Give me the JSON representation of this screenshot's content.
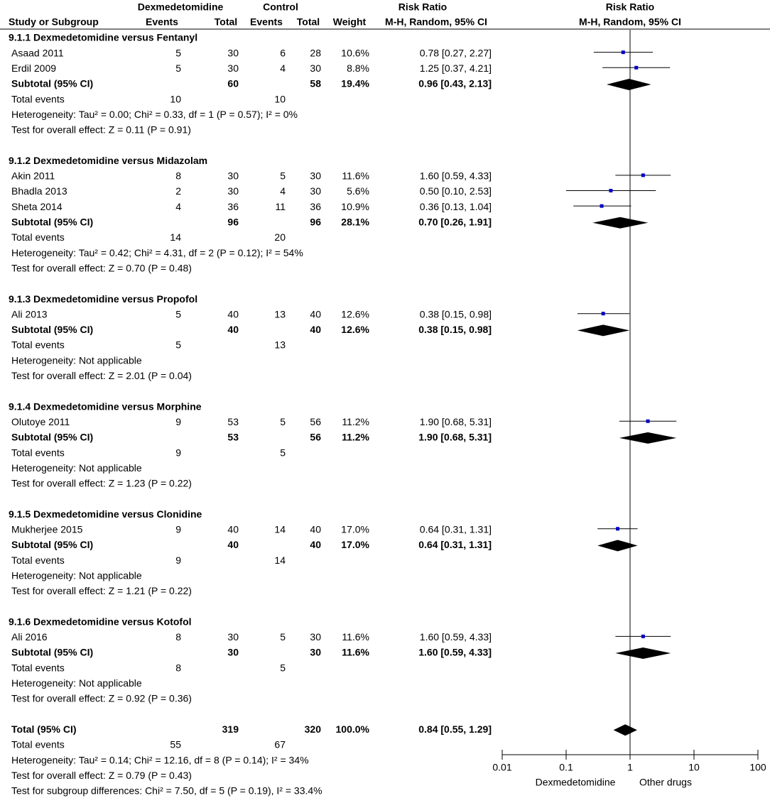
{
  "chart_data": {
    "type": "forest",
    "log": true,
    "xlim": [
      0.01,
      100
    ],
    "xticks": [
      {
        "value": 0.01,
        "label": "0.01"
      },
      {
        "value": 0.1,
        "label": "0.1"
      },
      1,
      10,
      100
    ],
    "xlabel_left": "Dexmedetomidine",
    "xlabel_right": "Other drugs",
    "square_color": "#0000c8",
    "header": {
      "exp_group": "Dexmedetomidine",
      "ctrl_group": "Control",
      "study": "Study or Subgroup",
      "events_exp": "Events",
      "total_exp": "Total",
      "events_ctrl": "Events",
      "total_ctrl": "Total",
      "weight": "Weight",
      "rr_title": "Risk Ratio",
      "rr_method": "M-H, Random, 95% CI",
      "plot_title": "Risk Ratio",
      "plot_method": "M-H, Random, 95% CI"
    },
    "groups": [
      {
        "title": "9.1.1 Dexmedetomidine versus Fentanyl",
        "studies": [
          {
            "name": "Asaad 2011",
            "events_exp": 5,
            "total_exp": 30,
            "events_ctrl": 6,
            "total_ctrl": 28,
            "weight": "10.6%",
            "rr": 0.78,
            "ci_low": 0.27,
            "ci_high": 2.27,
            "label": "0.78 [0.27, 2.27]"
          },
          {
            "name": "Erdil 2009",
            "events_exp": 5,
            "total_exp": 30,
            "events_ctrl": 4,
            "total_ctrl": 30,
            "weight": "8.8%",
            "rr": 1.25,
            "ci_low": 0.37,
            "ci_high": 4.21,
            "label": "1.25 [0.37, 4.21]"
          }
        ],
        "subtotal": {
          "name": "Subtotal (95% CI)",
          "total_exp": 60,
          "total_ctrl": 58,
          "weight": "19.4%",
          "rr": 0.96,
          "ci_low": 0.43,
          "ci_high": 2.13,
          "label": "0.96 [0.43, 2.13]"
        },
        "total_events": {
          "label": "Total events",
          "exp": 10,
          "ctrl": 10
        },
        "heterogeneity": "Heterogeneity: Tau² = 0.00; Chi² = 0.33, df = 1 (P = 0.57); I² = 0%",
        "overall_effect": "Test for overall effect: Z = 0.11 (P = 0.91)"
      },
      {
        "title": "9.1.2 Dexmedetomidine versus Midazolam",
        "studies": [
          {
            "name": "Akin 2011",
            "events_exp": 8,
            "total_exp": 30,
            "events_ctrl": 5,
            "total_ctrl": 30,
            "weight": "11.6%",
            "rr": 1.6,
            "ci_low": 0.59,
            "ci_high": 4.33,
            "label": "1.60 [0.59, 4.33]"
          },
          {
            "name": "Bhadla 2013",
            "events_exp": 2,
            "total_exp": 30,
            "events_ctrl": 4,
            "total_ctrl": 30,
            "weight": "5.6%",
            "rr": 0.5,
            "ci_low": 0.1,
            "ci_high": 2.53,
            "label": "0.50 [0.10, 2.53]"
          },
          {
            "name": "Sheta 2014",
            "events_exp": 4,
            "total_exp": 36,
            "events_ctrl": 11,
            "total_ctrl": 36,
            "weight": "10.9%",
            "rr": 0.36,
            "ci_low": 0.13,
            "ci_high": 1.04,
            "label": "0.36 [0.13, 1.04]"
          }
        ],
        "subtotal": {
          "name": "Subtotal (95% CI)",
          "total_exp": 96,
          "total_ctrl": 96,
          "weight": "28.1%",
          "rr": 0.7,
          "ci_low": 0.26,
          "ci_high": 1.91,
          "label": "0.70 [0.26, 1.91]"
        },
        "total_events": {
          "label": "Total events",
          "exp": 14,
          "ctrl": 20
        },
        "heterogeneity": "Heterogeneity: Tau² = 0.42; Chi² = 4.31, df = 2 (P = 0.12); I² = 54%",
        "overall_effect": "Test for overall effect: Z = 0.70 (P = 0.48)"
      },
      {
        "title": "9.1.3 Dexmedetomidine versus Propofol",
        "studies": [
          {
            "name": "Ali 2013",
            "events_exp": 5,
            "total_exp": 40,
            "events_ctrl": 13,
            "total_ctrl": 40,
            "weight": "12.6%",
            "rr": 0.38,
            "ci_low": 0.15,
            "ci_high": 0.98,
            "label": "0.38 [0.15, 0.98]"
          }
        ],
        "subtotal": {
          "name": "Subtotal (95% CI)",
          "total_exp": 40,
          "total_ctrl": 40,
          "weight": "12.6%",
          "rr": 0.38,
          "ci_low": 0.15,
          "ci_high": 0.98,
          "label": "0.38 [0.15, 0.98]"
        },
        "total_events": {
          "label": "Total events",
          "exp": 5,
          "ctrl": 13
        },
        "heterogeneity": "Heterogeneity: Not applicable",
        "overall_effect": "Test for overall effect: Z = 2.01 (P = 0.04)"
      },
      {
        "title": "9.1.4 Dexmedetomidine versus Morphine",
        "studies": [
          {
            "name": "Olutoye 2011",
            "events_exp": 9,
            "total_exp": 53,
            "events_ctrl": 5,
            "total_ctrl": 56,
            "weight": "11.2%",
            "rr": 1.9,
            "ci_low": 0.68,
            "ci_high": 5.31,
            "label": "1.90 [0.68, 5.31]"
          }
        ],
        "subtotal": {
          "name": "Subtotal (95% CI)",
          "total_exp": 53,
          "total_ctrl": 56,
          "weight": "11.2%",
          "rr": 1.9,
          "ci_low": 0.68,
          "ci_high": 5.31,
          "label": "1.90 [0.68, 5.31]"
        },
        "total_events": {
          "label": "Total events",
          "exp": 9,
          "ctrl": 5
        },
        "heterogeneity": "Heterogeneity: Not applicable",
        "overall_effect": "Test for overall effect: Z = 1.23 (P = 0.22)"
      },
      {
        "title": "9.1.5 Dexmedetomidine versus Clonidine",
        "studies": [
          {
            "name": "Mukherjee 2015",
            "events_exp": 9,
            "total_exp": 40,
            "events_ctrl": 14,
            "total_ctrl": 40,
            "weight": "17.0%",
            "rr": 0.64,
            "ci_low": 0.31,
            "ci_high": 1.31,
            "label": "0.64 [0.31, 1.31]"
          }
        ],
        "subtotal": {
          "name": "Subtotal (95% CI)",
          "total_exp": 40,
          "total_ctrl": 40,
          "weight": "17.0%",
          "rr": 0.64,
          "ci_low": 0.31,
          "ci_high": 1.31,
          "label": "0.64 [0.31, 1.31]"
        },
        "total_events": {
          "label": "Total events",
          "exp": 9,
          "ctrl": 14
        },
        "heterogeneity": "Heterogeneity: Not applicable",
        "overall_effect": "Test for overall effect: Z = 1.21 (P = 0.22)"
      },
      {
        "title": "9.1.6 Dexmedetomidine versus Kotofol",
        "studies": [
          {
            "name": "Ali 2016",
            "events_exp": 8,
            "total_exp": 30,
            "events_ctrl": 5,
            "total_ctrl": 30,
            "weight": "11.6%",
            "rr": 1.6,
            "ci_low": 0.59,
            "ci_high": 4.33,
            "label": "1.60 [0.59, 4.33]"
          }
        ],
        "subtotal": {
          "name": "Subtotal (95% CI)",
          "total_exp": 30,
          "total_ctrl": 30,
          "weight": "11.6%",
          "rr": 1.6,
          "ci_low": 0.59,
          "ci_high": 4.33,
          "label": "1.60 [0.59, 4.33]"
        },
        "total_events": {
          "label": "Total events",
          "exp": 8,
          "ctrl": 5
        },
        "heterogeneity": "Heterogeneity: Not applicable",
        "overall_effect": "Test for overall effect: Z = 0.92 (P = 0.36)"
      }
    ],
    "overall": {
      "name": "Total (95% CI)",
      "total_exp": 319,
      "total_ctrl": 320,
      "weight": "100.0%",
      "rr": 0.84,
      "ci_low": 0.55,
      "ci_high": 1.29,
      "label": "0.84 [0.55, 1.29]",
      "total_events": {
        "label": "Total events",
        "exp": 55,
        "ctrl": 67
      },
      "heterogeneity": "Heterogeneity: Tau² = 0.14; Chi² = 12.16, df = 8 (P = 0.14); I² = 34%",
      "overall_effect": "Test for overall effect: Z = 0.79 (P = 0.43)",
      "subgroup_differences": "Test for subgroup differences: Chi² = 7.50, df = 5 (P = 0.19), I² = 33.4%"
    }
  }
}
